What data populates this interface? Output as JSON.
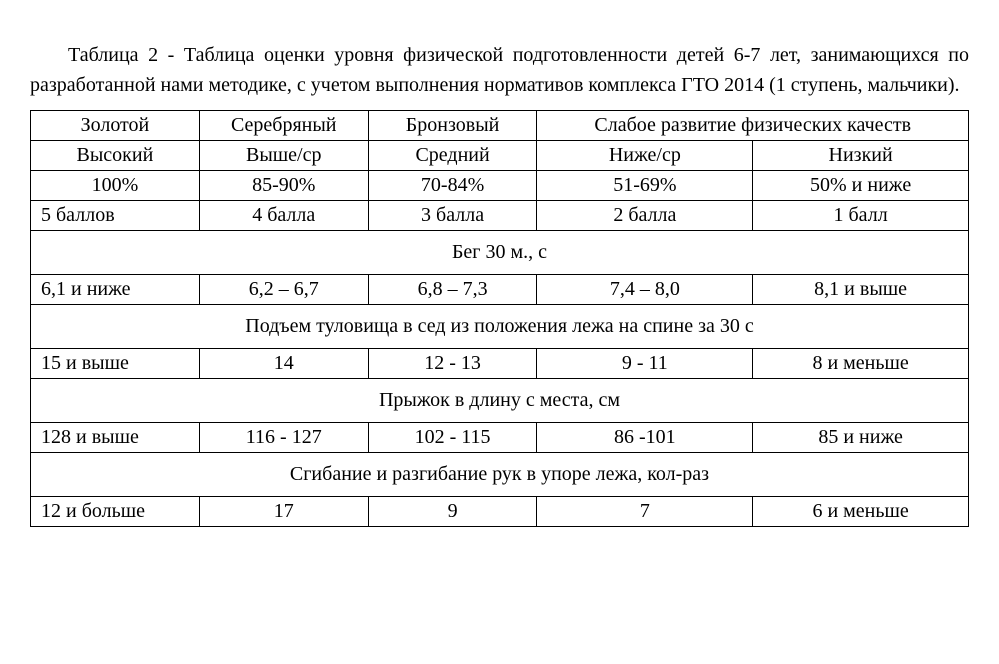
{
  "caption": "Таблица 2 -  Таблица оценки уровня физической подготовленности детей 6-7 лет, занимающихся по разработанной нами методике, с учетом выполнения нормативов комплекса ГТО 2014 (1 ступень, мальчики).",
  "header": {
    "medals": {
      "gold": "Золотой",
      "silver": "Серебряный",
      "bronze": "Бронзовый",
      "weak": "Слабое развитие физических качеств"
    },
    "levels": {
      "high": "Высокий",
      "above": "Выше/ср",
      "mid": "Средний",
      "below": "Ниже/ср",
      "low": "Низкий"
    },
    "percent": {
      "c1": "100%",
      "c2": "85-90%",
      "c3": "70-84%",
      "c4": "51-69%",
      "c5": "50% и ниже"
    },
    "points": {
      "c1": "5 баллов",
      "c2": "4 балла",
      "c3": "3 балла",
      "c4": "2 балла",
      "c5": "1 балл"
    }
  },
  "sections": {
    "run30": {
      "title": "Бег 30 м., с",
      "vals": {
        "c1": "6,1 и ниже",
        "c2": "6,2 – 6,7",
        "c3": "6,8 – 7,3",
        "c4": "7,4 – 8,0",
        "c5": "8,1 и выше"
      }
    },
    "situp": {
      "title": "Подъем туловища в сед из положения лежа на спине за 30 с",
      "vals": {
        "c1": "15 и выше",
        "c2": "14",
        "c3": "12 - 13",
        "c4": "9 - 11",
        "c5": "8 и меньше"
      }
    },
    "jump": {
      "title": "Прыжок в длину с места, см",
      "vals": {
        "c1": "128 и выше",
        "c2": "116 - 127",
        "c3": "102 - 115",
        "c4": "86 -101",
        "c5": "85  и ниже"
      }
    },
    "pushup": {
      "title": "Сгибание и разгибание рук в упоре лежа, кол-раз",
      "vals": {
        "c1": "12 и больше",
        "c2": "17",
        "c3": "9",
        "c4": "7",
        "c5": "6 и меньше"
      }
    }
  },
  "style": {
    "border_color": "#000000",
    "background": "#ffffff",
    "font_family": "Times New Roman",
    "base_fontsize_pt": 15
  }
}
